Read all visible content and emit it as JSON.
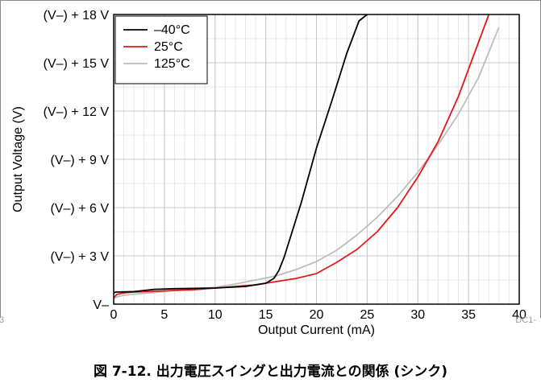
{
  "figure": {
    "caption": "図 7-12. 出力電圧スイングと出力電流との関係 (シンク)",
    "id": "DC1-",
    "page_marker": "3"
  },
  "chart_data": {
    "type": "line",
    "title": "",
    "xlabel": "Output Current (mA)",
    "ylabel": "Output Voltage (V)",
    "xlim": [
      0,
      40
    ],
    "ylim": [
      0,
      18
    ],
    "x_ticks": [
      0,
      5,
      10,
      15,
      20,
      25,
      30,
      35,
      40
    ],
    "y_ticks": [
      0,
      3,
      6,
      9,
      12,
      15,
      18
    ],
    "y_tick_labels": [
      "V–",
      "(V–) + 3 V",
      "(V–) + 6 V",
      "(V–) + 9 V",
      "(V–) + 12 V",
      "(V–) + 15 V",
      "(V–) + 18 V"
    ],
    "grid": true,
    "legend_position": "top-left",
    "series": [
      {
        "name": "–40°C",
        "color": "#000000",
        "x": [
          0,
          0.2,
          2,
          4,
          6,
          10,
          13,
          15,
          15.8,
          16.3,
          16.8,
          17.5,
          18.5,
          20,
          21.5,
          23,
          24.2,
          25
        ],
        "y": [
          0.7,
          0.75,
          0.78,
          0.92,
          0.96,
          1.0,
          1.1,
          1.3,
          1.6,
          2.1,
          2.9,
          4.3,
          6.3,
          9.7,
          12.6,
          15.6,
          17.6,
          18.0
        ]
      },
      {
        "name": "25°C",
        "color": "#e4191c",
        "x": [
          0,
          0.3,
          1,
          2,
          4,
          6,
          8,
          10,
          12,
          14,
          16,
          18,
          20,
          22,
          24,
          26,
          28,
          30,
          32,
          34,
          36,
          37
        ],
        "y": [
          0.4,
          0.6,
          0.7,
          0.75,
          0.8,
          0.85,
          0.9,
          1.0,
          1.1,
          1.2,
          1.4,
          1.6,
          1.9,
          2.6,
          3.4,
          4.5,
          6.0,
          7.9,
          10.1,
          12.9,
          16.3,
          18.0
        ]
      },
      {
        "name": "125°C",
        "color": "#bdbdbd",
        "x": [
          0,
          0.3,
          1,
          2,
          4,
          6,
          8,
          10,
          12,
          14,
          16,
          18,
          20,
          22,
          24,
          26,
          28,
          30,
          32,
          34,
          36,
          38
        ],
        "y": [
          0.35,
          0.45,
          0.55,
          0.62,
          0.72,
          0.85,
          0.95,
          1.05,
          1.25,
          1.5,
          1.75,
          2.15,
          2.65,
          3.35,
          4.3,
          5.4,
          6.7,
          8.2,
          9.9,
          11.8,
          14.1,
          17.2
        ]
      }
    ]
  }
}
